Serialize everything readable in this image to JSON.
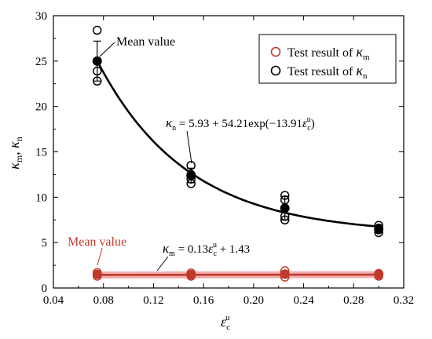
{
  "chart_data": {
    "type": "scatter",
    "xlabel": {
      "main": "ε",
      "sub": "c",
      "sup": "u"
    },
    "ylabel": {
      "k1": "κ",
      "s1": "m",
      "sep": ", ",
      "k2": "κ",
      "s2": "n"
    },
    "xlim": [
      0.04,
      0.32
    ],
    "ylim": [
      0,
      30
    ],
    "xticks": [
      "0.04",
      "0.08",
      "0.12",
      "0.16",
      "0.20",
      "0.24",
      "0.28",
      "0.32"
    ],
    "yticks": [
      "0",
      "5",
      "10",
      "15",
      "20",
      "25",
      "30"
    ],
    "legend": {
      "placement": "top-right",
      "entries": [
        {
          "prefix": "Test result of ",
          "k": "κ",
          "sub": "m",
          "color": "#c0392b"
        },
        {
          "prefix": "Test result of ",
          "k": "κ",
          "sub": "n",
          "color": "#000000"
        }
      ]
    },
    "series": [
      {
        "name": "Test result of κm",
        "color": "#c0392b",
        "points": [
          {
            "x": 0.075,
            "y": 1.3
          },
          {
            "x": 0.075,
            "y": 1.5
          },
          {
            "x": 0.075,
            "y": 1.7
          },
          {
            "x": 0.15,
            "y": 1.3
          },
          {
            "x": 0.15,
            "y": 1.45
          },
          {
            "x": 0.15,
            "y": 1.65
          },
          {
            "x": 0.225,
            "y": 1.2
          },
          {
            "x": 0.225,
            "y": 1.5
          },
          {
            "x": 0.225,
            "y": 1.9
          },
          {
            "x": 0.3,
            "y": 1.3
          },
          {
            "x": 0.3,
            "y": 1.5
          },
          {
            "x": 0.3,
            "y": 1.6
          }
        ],
        "means": [
          {
            "x": 0.075,
            "y": 1.5,
            "err": 0.25
          },
          {
            "x": 0.15,
            "y": 1.47,
            "err": 0.2
          },
          {
            "x": 0.225,
            "y": 1.53,
            "err": 0.35
          },
          {
            "x": 0.3,
            "y": 1.47,
            "err": 0.15
          }
        ],
        "fit": {
          "equation_lhs_k": "κ",
          "equation_lhs_sub": "m",
          "equation_rhs": " = 0.13",
          "eps": "ε",
          "eps_sub": "c",
          "eps_sup": "u",
          "tail": " + 1.43",
          "a": 0.13,
          "b": 1.43
        }
      },
      {
        "name": "Test result of κn",
        "color": "#000000",
        "points": [
          {
            "x": 0.075,
            "y": 22.8
          },
          {
            "x": 0.075,
            "y": 23.9
          },
          {
            "x": 0.075,
            "y": 25.0
          },
          {
            "x": 0.075,
            "y": 28.4
          },
          {
            "x": 0.15,
            "y": 11.5
          },
          {
            "x": 0.15,
            "y": 12.0
          },
          {
            "x": 0.15,
            "y": 12.5
          },
          {
            "x": 0.15,
            "y": 13.5
          },
          {
            "x": 0.225,
            "y": 7.5
          },
          {
            "x": 0.225,
            "y": 7.9
          },
          {
            "x": 0.225,
            "y": 9.7
          },
          {
            "x": 0.225,
            "y": 10.2
          },
          {
            "x": 0.3,
            "y": 6.1
          },
          {
            "x": 0.3,
            "y": 6.4
          },
          {
            "x": 0.3,
            "y": 6.6
          },
          {
            "x": 0.3,
            "y": 6.9
          }
        ],
        "means": [
          {
            "x": 0.075,
            "y": 25.0,
            "err": 2.2
          },
          {
            "x": 0.15,
            "y": 12.4,
            "err": 0.8
          },
          {
            "x": 0.225,
            "y": 8.8,
            "err": 1.3
          },
          {
            "x": 0.3,
            "y": 6.5,
            "err": 0.4
          }
        ],
        "fit": {
          "equation_lhs_k": "κ",
          "equation_lhs_sub": "n",
          "equation_rhs": " = 5.93 + 54.21exp(−13.91",
          "eps": "ε",
          "eps_sub": "c",
          "eps_sup": "u",
          "tail": ")",
          "a": 5.93,
          "b": 54.21,
          "c": -13.91
        }
      }
    ],
    "annotations": [
      {
        "text": "Mean value",
        "color": "#000000",
        "target_x": 0.075,
        "target_y": 25.0
      },
      {
        "text": "Mean value",
        "color": "#c0392b",
        "target_x": 0.075,
        "target_y": 1.5
      }
    ]
  }
}
